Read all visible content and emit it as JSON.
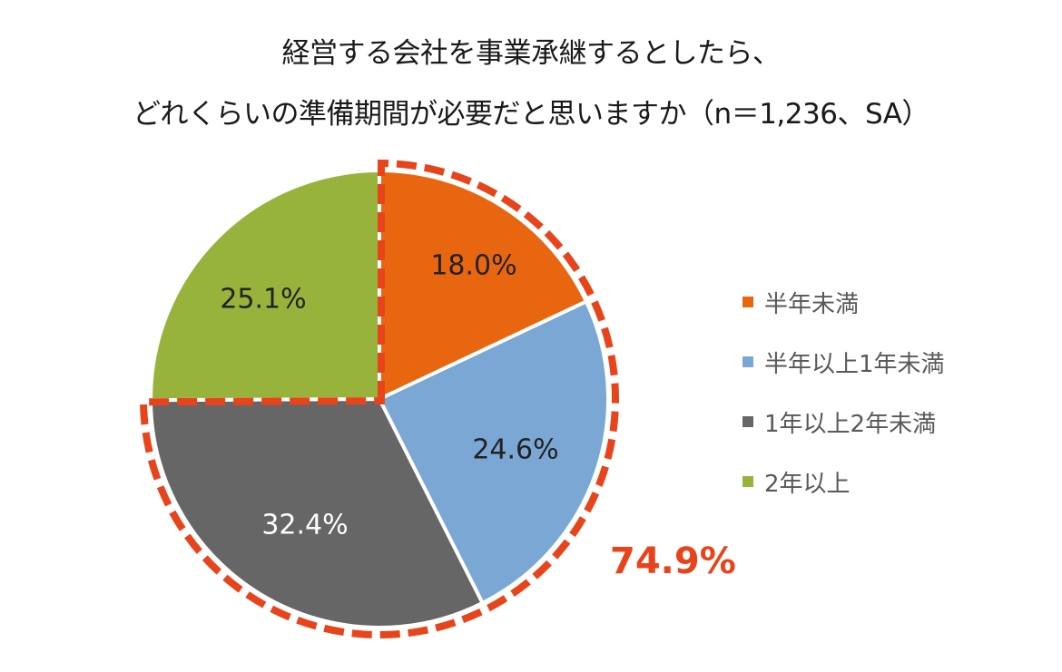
{
  "chart_data": {
    "type": "pie",
    "title": "経営する会社を事業承継するとしたら、どれくらいの準備期間が必要だと思いますか（n＝1,236、SA）",
    "title_lines": [
      "経営する会社を事業承継するとしたら、",
      "どれくらいの準備期間が必要だと思いますか（n＝1,236、SA）"
    ],
    "categories": [
      "半年未満",
      "半年以上1年未満",
      "1年以上2年未満",
      "2年以上"
    ],
    "values": [
      18.0,
      24.6,
      32.4,
      25.1
    ],
    "labels": [
      "18.0%",
      "24.6%",
      "32.4%",
      "25.1%"
    ],
    "colors": [
      "#E96610",
      "#7BA7D4",
      "#666666",
      "#98B33C"
    ],
    "label_colors": [
      "#000000",
      "#000000",
      "#FFFFFF",
      "#000000"
    ],
    "start_angle": "12 o'clock, clockwise",
    "legend_position": "right",
    "annotation": {
      "text": "74.9%",
      "color": "#E8441B",
      "note": "Sum of first three slices highlighted with red dashed outline"
    }
  },
  "legend": {
    "items": [
      {
        "label": "半年未満",
        "color": "#E96610"
      },
      {
        "label": "半年以上1年未満",
        "color": "#7BA7D4"
      },
      {
        "label": "1年以上2年未満",
        "color": "#666666"
      },
      {
        "label": "2年以上",
        "color": "#98B33C"
      }
    ]
  }
}
